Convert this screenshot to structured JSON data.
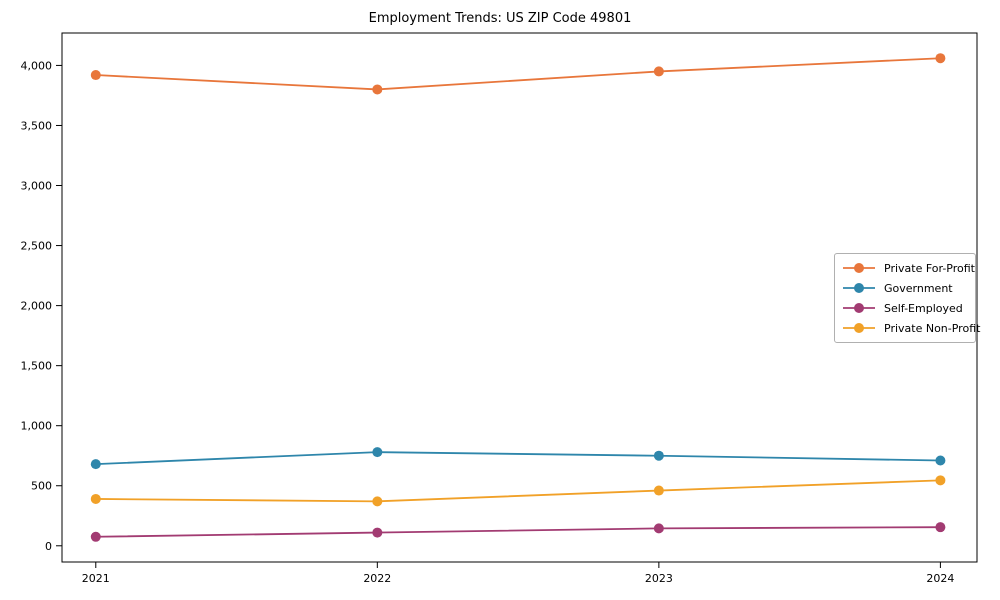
{
  "chart_data": {
    "type": "line",
    "title": "Employment Trends: US ZIP Code 49801",
    "xlabel": "",
    "ylabel": "",
    "x": [
      2021,
      2022,
      2023,
      2024
    ],
    "x_labels": [
      "2021",
      "2022",
      "2023",
      "2024"
    ],
    "xlim": [
      2020.88,
      2024.13
    ],
    "ylim": [
      -135,
      4270
    ],
    "yticks": [
      0,
      500,
      1000,
      1500,
      2000,
      2500,
      3000,
      3500,
      4000
    ],
    "ytick_labels": [
      "0",
      "500",
      "1,000",
      "1,500",
      "2,000",
      "2,500",
      "3,000",
      "3,500",
      "4,000"
    ],
    "grid": false,
    "legend_position": "center-right",
    "series": [
      {
        "name": "Private For-Profit",
        "color": "#e8763b",
        "values": [
          3920,
          3800,
          3950,
          4060
        ]
      },
      {
        "name": "Government",
        "color": "#2e86ab",
        "values": [
          680,
          780,
          750,
          710
        ]
      },
      {
        "name": "Self-Employed",
        "color": "#a23b72",
        "values": [
          75,
          110,
          145,
          155
        ]
      },
      {
        "name": "Private Non-Profit",
        "color": "#f1a128",
        "values": [
          390,
          370,
          460,
          545
        ]
      }
    ]
  },
  "colors": {
    "axis": "#000000",
    "background": "#ffffff",
    "legend_border": "#b0b0b0"
  }
}
